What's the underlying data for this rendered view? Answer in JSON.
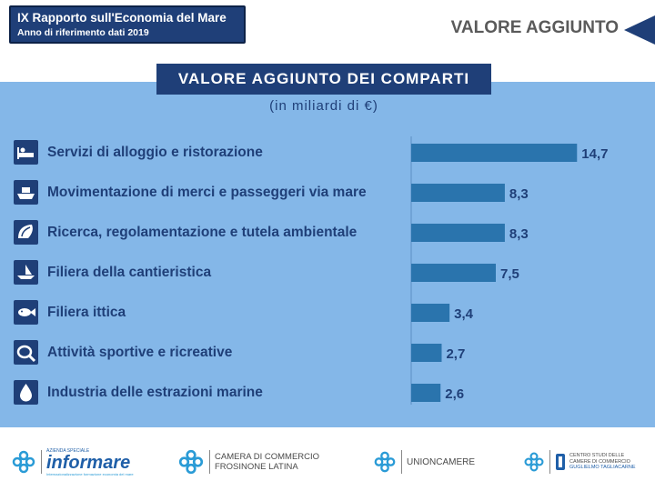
{
  "header": {
    "title": "IX Rapporto sull'Economia del Mare",
    "subtitle": "Anno di riferimento dati 2019"
  },
  "section_title": "VALORE AGGIUNTO",
  "colors": {
    "navy": "#1f3f78",
    "bar": "#2a74ad",
    "panel": "#84b7e8",
    "value_text": "#1f3f78"
  },
  "chart_data": {
    "type": "bar",
    "orientation": "horizontal",
    "title": "VALORE AGGIUNTO DEI COMPARTI",
    "subtitle": "(in miliardi di €)",
    "categories": [
      "Servizi di alloggio e ristorazione",
      "Movimentazione di merci e passeggeri via mare",
      "Ricerca, regolamentazione e tutela ambientale",
      "Filiera della cantieristica",
      "Filiera ittica",
      "Attività sportive e ricreative",
      "Industria delle estrazioni marine"
    ],
    "values": [
      14.7,
      8.3,
      8.3,
      7.5,
      3.4,
      2.7,
      2.6
    ],
    "value_labels": [
      "14,7",
      "8,3",
      "8,3",
      "7,5",
      "3,4",
      "2,7",
      "2,6"
    ],
    "icons": [
      "bed-icon",
      "ship-icon",
      "shell-icon",
      "boat-icon",
      "fish-icon",
      "sports-icon",
      "oil-drop-icon"
    ],
    "xlim": [
      0,
      15
    ],
    "grid": false,
    "legend": "none"
  },
  "footer": {
    "informare_tag": "AZIENDA SPECIALE",
    "informare_name": "informare",
    "informare_caption": "Internazionalizzazione formazione economia del mare",
    "camera_line1": "CAMERA DI COMMERCIO",
    "camera_line2": "FROSINONE LATINA",
    "unioncamere": "UNIONCAMERE",
    "tagliacarne_line1": "CENTRO STUDI DELLE",
    "tagliacarne_line2": "CAMERE DI COMMERCIO",
    "tagliacarne_line3": "GUGLIELMO TAGLIACARNE"
  }
}
